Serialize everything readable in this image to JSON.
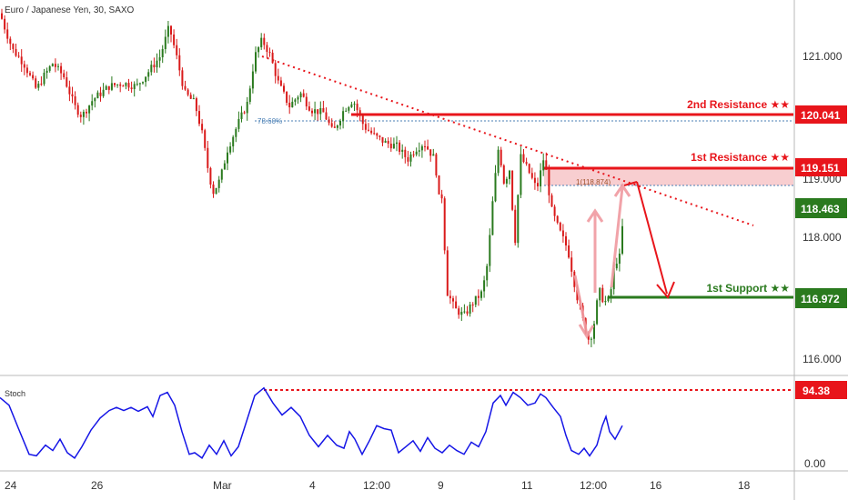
{
  "title": "Euro / Japanese Yen, 30, SAXO",
  "stoch_label": "Stoch",
  "colors": {
    "resistance": "#e8151b",
    "support": "#2a7a1e",
    "price_badge": "#2a7a1e",
    "candle_up": "#2a7a1e",
    "candle_down": "#d91a1a",
    "stoch_line": "#1515e6",
    "zone_fill": "#f7c6c8",
    "fib": "#4a7fb5"
  },
  "chart_data": {
    "type": "candlestick",
    "symbol": "Euro / Japanese Yen",
    "timeframe": "30",
    "source": "SAXO",
    "price_axis": {
      "ticks": [
        "121.000",
        "119.000",
        "118.000",
        "116.000"
      ],
      "ylim": [
        115.8,
        121.45
      ]
    },
    "time_axis": {
      "ticks": [
        "24",
        "26",
        "Mar",
        "4",
        "12:00",
        "9",
        "11",
        "12:00",
        "16",
        "18"
      ]
    },
    "levels": [
      {
        "name": "2nd Resistance",
        "stars": "★★",
        "value": "120.041",
        "color": "#e8151b"
      },
      {
        "name": "1st Resistance",
        "stars": "★★",
        "value": "119.151",
        "color": "#e8151b"
      },
      {
        "name": "1st Support",
        "stars": "★★",
        "value": "116.972",
        "color": "#2a7a1e"
      }
    ],
    "current_price": "118.463",
    "fib_labels": [
      "78.60%",
      "1(118.874)"
    ],
    "zone": [
      118.874,
      119.151
    ],
    "path": [
      [
        0,
        121.25
      ],
      [
        6,
        121.0
      ],
      [
        14,
        120.7
      ],
      [
        26,
        120.5
      ],
      [
        40,
        120.1
      ],
      [
        48,
        120.3
      ],
      [
        58,
        120.5
      ],
      [
        70,
        120.3
      ],
      [
        82,
        119.85
      ],
      [
        90,
        119.7
      ],
      [
        102,
        119.95
      ],
      [
        120,
        120.15
      ],
      [
        135,
        120.2
      ],
      [
        150,
        120.15
      ],
      [
        162,
        120.35
      ],
      [
        176,
        120.6
      ],
      [
        186,
        121.05
      ],
      [
        194,
        120.6
      ],
      [
        203,
        120.05
      ],
      [
        214,
        119.9
      ],
      [
        222,
        119.45
      ],
      [
        228,
        118.95
      ],
      [
        234,
        118.55
      ],
      [
        242,
        118.75
      ],
      [
        250,
        119.2
      ],
      [
        262,
        119.6
      ],
      [
        272,
        119.9
      ],
      [
        280,
        120.6
      ],
      [
        288,
        120.85
      ],
      [
        296,
        120.65
      ],
      [
        306,
        120.2
      ],
      [
        318,
        119.85
      ],
      [
        330,
        120.05
      ],
      [
        342,
        119.8
      ],
      [
        356,
        119.75
      ],
      [
        366,
        119.45
      ],
      [
        378,
        119.8
      ],
      [
        388,
        119.95
      ],
      [
        400,
        119.55
      ],
      [
        412,
        119.4
      ],
      [
        424,
        119.3
      ],
      [
        436,
        119.25
      ],
      [
        448,
        119.05
      ],
      [
        456,
        119.2
      ],
      [
        466,
        119.3
      ],
      [
        478,
        119.05
      ],
      [
        483,
        118.4
      ],
      [
        487,
        118.55
      ],
      [
        490,
        117.1
      ],
      [
        500,
        116.8
      ],
      [
        510,
        116.7
      ],
      [
        520,
        116.9
      ],
      [
        530,
        117.05
      ],
      [
        536,
        117.5
      ],
      [
        542,
        118.5
      ],
      [
        548,
        119.25
      ],
      [
        554,
        118.7
      ],
      [
        560,
        118.9
      ],
      [
        566,
        117.8
      ],
      [
        572,
        119.1
      ],
      [
        580,
        118.9
      ],
      [
        590,
        118.6
      ],
      [
        598,
        119.1
      ],
      [
        606,
        118.3
      ],
      [
        614,
        118.0
      ],
      [
        624,
        117.7
      ],
      [
        634,
        117.0
      ],
      [
        642,
        116.55
      ],
      [
        648,
        116.3
      ],
      [
        654,
        116.65
      ],
      [
        658,
        117.1
      ],
      [
        664,
        116.9
      ],
      [
        670,
        116.95
      ],
      [
        676,
        117.5
      ],
      [
        682,
        117.6
      ],
      [
        686,
        118.45
      ]
    ],
    "stoch": {
      "ylim": [
        0,
        100
      ],
      "ticks": [
        "0.00"
      ],
      "level": "94.38",
      "path": [
        [
          0,
          85
        ],
        [
          10,
          75
        ],
        [
          20,
          45
        ],
        [
          32,
          10
        ],
        [
          40,
          8
        ],
        [
          50,
          22
        ],
        [
          58,
          15
        ],
        [
          66,
          30
        ],
        [
          74,
          12
        ],
        [
          82,
          5
        ],
        [
          90,
          20
        ],
        [
          100,
          42
        ],
        [
          110,
          58
        ],
        [
          120,
          68
        ],
        [
          128,
          72
        ],
        [
          136,
          68
        ],
        [
          144,
          72
        ],
        [
          152,
          67
        ],
        [
          162,
          73
        ],
        [
          168,
          60
        ],
        [
          176,
          88
        ],
        [
          184,
          92
        ],
        [
          192,
          75
        ],
        [
          200,
          40
        ],
        [
          208,
          10
        ],
        [
          214,
          12
        ],
        [
          222,
          5
        ],
        [
          230,
          22
        ],
        [
          238,
          10
        ],
        [
          246,
          28
        ],
        [
          254,
          8
        ],
        [
          262,
          20
        ],
        [
          270,
          50
        ],
        [
          280,
          88
        ],
        [
          290,
          98
        ],
        [
          300,
          78
        ],
        [
          310,
          62
        ],
        [
          320,
          72
        ],
        [
          330,
          60
        ],
        [
          340,
          35
        ],
        [
          350,
          20
        ],
        [
          360,
          35
        ],
        [
          370,
          22
        ],
        [
          378,
          18
        ],
        [
          384,
          40
        ],
        [
          390,
          30
        ],
        [
          398,
          10
        ],
        [
          406,
          28
        ],
        [
          414,
          48
        ],
        [
          422,
          44
        ],
        [
          430,
          42
        ],
        [
          438,
          12
        ],
        [
          446,
          20
        ],
        [
          454,
          28
        ],
        [
          462,
          14
        ],
        [
          470,
          32
        ],
        [
          478,
          18
        ],
        [
          486,
          12
        ],
        [
          494,
          22
        ],
        [
          502,
          15
        ],
        [
          510,
          10
        ],
        [
          518,
          26
        ],
        [
          526,
          20
        ],
        [
          534,
          40
        ],
        [
          542,
          78
        ],
        [
          550,
          88
        ],
        [
          556,
          75
        ],
        [
          564,
          92
        ],
        [
          572,
          85
        ],
        [
          580,
          75
        ],
        [
          588,
          78
        ],
        [
          594,
          90
        ],
        [
          600,
          85
        ],
        [
          608,
          72
        ],
        [
          616,
          60
        ],
        [
          622,
          35
        ],
        [
          628,
          15
        ],
        [
          636,
          10
        ],
        [
          642,
          18
        ],
        [
          648,
          8
        ],
        [
          656,
          22
        ],
        [
          662,
          48
        ],
        [
          666,
          60
        ],
        [
          670,
          40
        ],
        [
          676,
          30
        ],
        [
          684,
          48
        ]
      ]
    }
  }
}
